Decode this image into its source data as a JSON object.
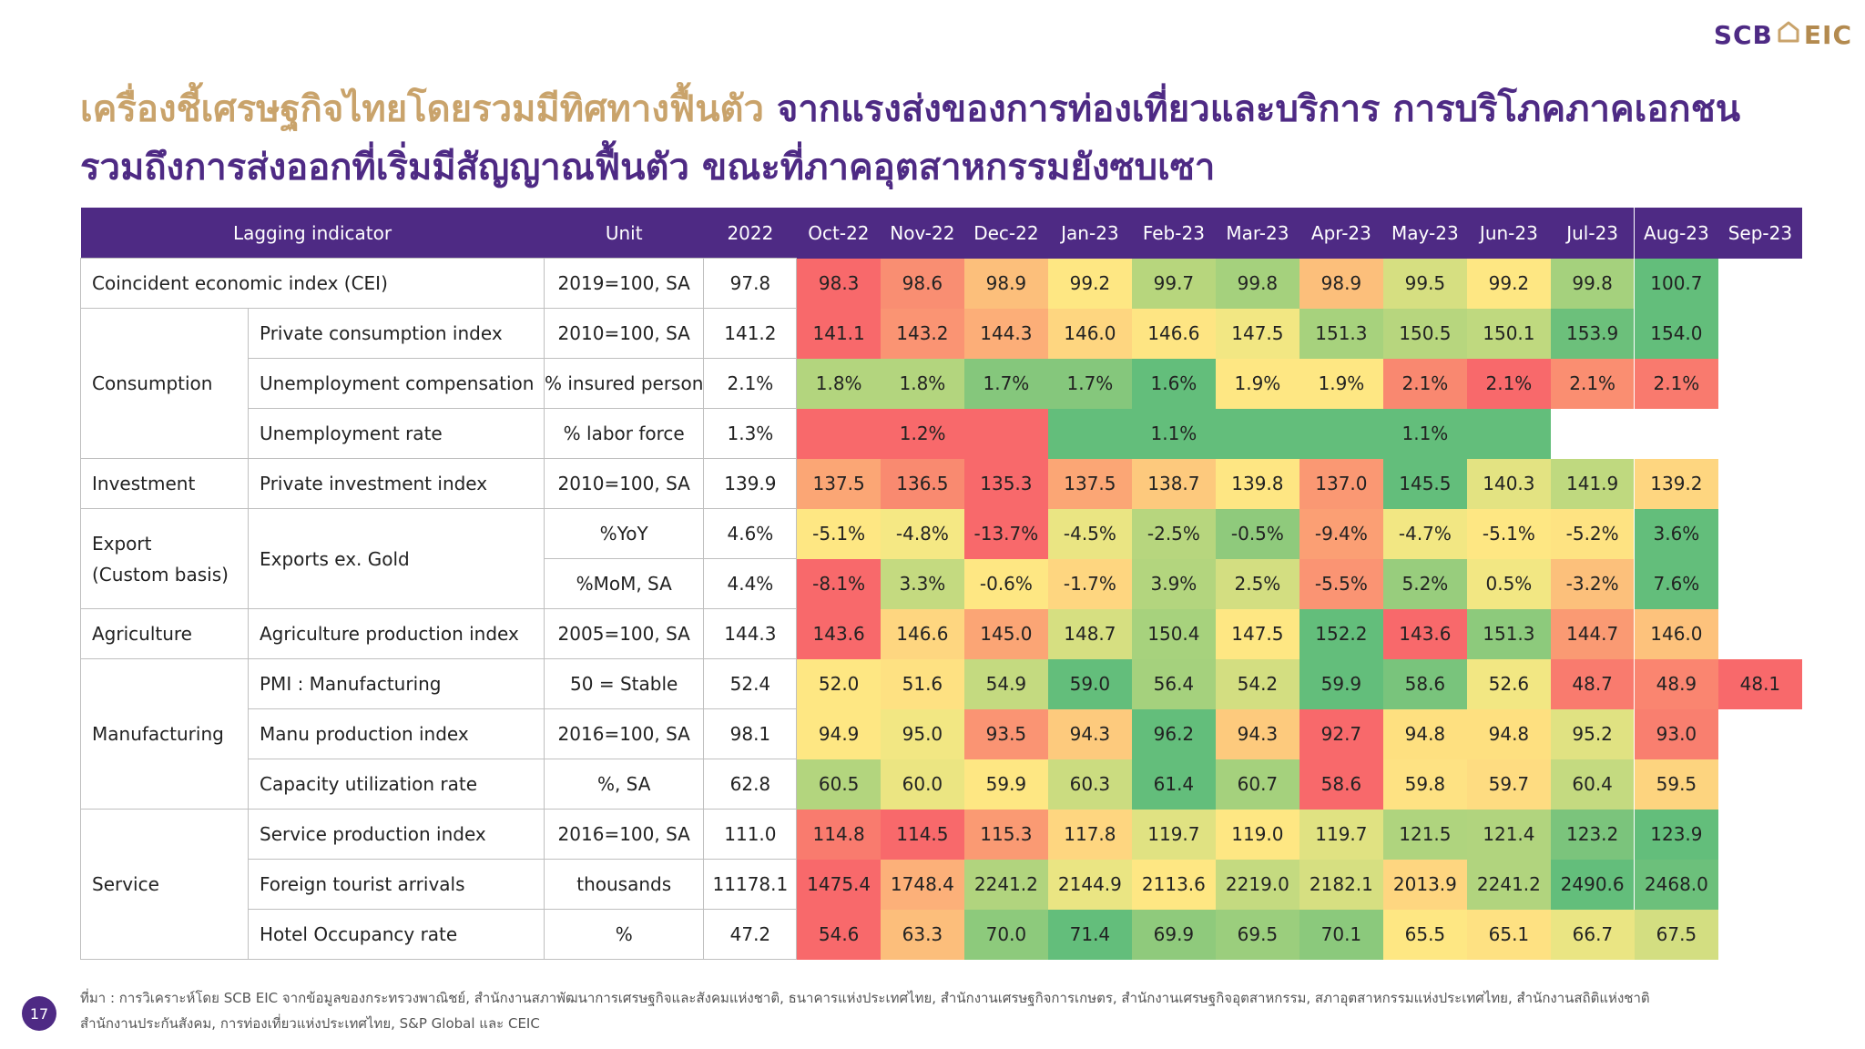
{
  "logo": {
    "left": "SCB",
    "right": "EIC"
  },
  "title": {
    "line1_gold": "เครื่องชี้เศรษฐกิจไทยโดยรวมมีทิศทางฟื้นตัว",
    "line1_rest": " จากแรงส่งของการท่องเที่ยวและบริการ การบริโภคภาคเอกชน",
    "line2": "รวมถึงการส่งออกที่เริ่มมีสัญญาณฟื้นตัว ขณะที่ภาคอุตสาหกรรมยังซบเซา"
  },
  "table": {
    "headers": {
      "indicator": "Lagging indicator",
      "unit": "Unit",
      "year": "2022",
      "months": [
        "Oct-22",
        "Nov-22",
        "Dec-22",
        "Jan-23",
        "Feb-23",
        "Mar-23",
        "Apr-23",
        "May-23",
        "Jun-23",
        "Jul-23",
        "Aug-23",
        "Sep-23"
      ]
    },
    "groups": {
      "consumption": "Consumption",
      "investment": "Investment",
      "export_line1": "Export",
      "export_line2": "(Custom basis)",
      "agriculture": "Agriculture",
      "manufacturing": "Manufacturing",
      "service": "Service"
    },
    "rows": [
      {
        "name": "Coincident economic index (CEI)",
        "unit": "2019=100, SA",
        "y2022": "97.8",
        "cells": [
          [
            "98.3",
            "#f8696b"
          ],
          [
            "98.6",
            "#f98e72"
          ],
          [
            "98.9",
            "#fcbf7b"
          ],
          [
            "99.2",
            "#fee783"
          ],
          [
            "99.7",
            "#b7d67d"
          ],
          [
            "99.8",
            "#a5d17d"
          ],
          [
            "98.9",
            "#fcbf7b"
          ],
          [
            "99.5",
            "#d6df81"
          ],
          [
            "99.2",
            "#fee783"
          ],
          [
            "99.8",
            "#a5d17d"
          ],
          [
            "100.7",
            "#63be7b"
          ]
        ]
      },
      {
        "name": "Private consumption index",
        "unit": "2010=100, SA",
        "y2022": "141.2",
        "cells": [
          [
            "141.1",
            "#f8696b"
          ],
          [
            "143.2",
            "#fa9473"
          ],
          [
            "144.3",
            "#fcae78"
          ],
          [
            "146.0",
            "#fed680"
          ],
          [
            "146.6",
            "#fee583"
          ],
          [
            "147.5",
            "#f2e783"
          ],
          [
            "151.3",
            "#a7d27d"
          ],
          [
            "150.5",
            "#b7d67e"
          ],
          [
            "150.1",
            "#bfd97f"
          ],
          [
            "153.9",
            "#6cc07b"
          ],
          [
            "154.0",
            "#63be7b"
          ]
        ]
      },
      {
        "name": "Unemployment compensation",
        "unit": "% insured person",
        "y2022": "2.1%",
        "cells": [
          [
            "1.8%",
            "#b3d57e"
          ],
          [
            "1.8%",
            "#b3d57e"
          ],
          [
            "1.7%",
            "#85c77c"
          ],
          [
            "1.7%",
            "#85c77c"
          ],
          [
            "1.6%",
            "#63be7b"
          ],
          [
            "1.9%",
            "#fee783"
          ],
          [
            "1.9%",
            "#fee783"
          ],
          [
            "2.1%",
            "#f98870"
          ],
          [
            "2.1%",
            "#f8696b"
          ],
          [
            "2.1%",
            "#fa8e71"
          ],
          [
            "2.1%",
            "#f97a6e"
          ]
        ]
      },
      {
        "name": "Unemployment rate",
        "unit": "% labor force",
        "y2022": "1.3%",
        "merged": [
          {
            "text": "1.2%",
            "span": 3,
            "color": "#f8696b"
          },
          {
            "text": "1.1%",
            "span": 3,
            "color": "#63be7b"
          },
          {
            "text": "1.1%",
            "span": 3,
            "color": "#63be7b"
          }
        ]
      },
      {
        "name": "Private investment index",
        "unit": "2010=100, SA",
        "y2022": "139.9",
        "cells": [
          [
            "137.5",
            "#fba675"
          ],
          [
            "136.5",
            "#f98a70"
          ],
          [
            "135.3",
            "#f8696b"
          ],
          [
            "137.5",
            "#fba675"
          ],
          [
            "138.7",
            "#fdc97d"
          ],
          [
            "139.8",
            "#fee683"
          ],
          [
            "137.0",
            "#fa9873"
          ],
          [
            "145.5",
            "#63be7b"
          ],
          [
            "140.3",
            "#e3e382"
          ],
          [
            "141.9",
            "#bfd97f"
          ],
          [
            "139.2",
            "#fed680"
          ]
        ]
      },
      {
        "name": "Exports ex. Gold",
        "unit": "%YoY",
        "y2022": "4.6%",
        "cells": [
          [
            "-5.1%",
            "#fee783"
          ],
          [
            "-4.8%",
            "#f5e884"
          ],
          [
            "-13.7%",
            "#f8696b"
          ],
          [
            "-4.5%",
            "#eae583"
          ],
          [
            "-2.5%",
            "#b7d67e"
          ],
          [
            "-0.5%",
            "#8fca7c"
          ],
          [
            "-9.4%",
            "#fb9f74"
          ],
          [
            "-4.7%",
            "#f2e783"
          ],
          [
            "-5.1%",
            "#fee783"
          ],
          [
            "-5.2%",
            "#fee382"
          ],
          [
            "3.6%",
            "#63be7b"
          ]
        ]
      },
      {
        "unit": "%MoM, SA",
        "y2022": "4.4%",
        "cells": [
          [
            "-8.1%",
            "#f8696b"
          ],
          [
            "3.3%",
            "#c4da80"
          ],
          [
            "-0.6%",
            "#fee783"
          ],
          [
            "-1.7%",
            "#fed680"
          ],
          [
            "3.9%",
            "#b3d57e"
          ],
          [
            "2.5%",
            "#d3de81"
          ],
          [
            "-5.5%",
            "#fa9473"
          ],
          [
            "5.2%",
            "#98cd7d"
          ],
          [
            "0.5%",
            "#f2e783"
          ],
          [
            "-3.2%",
            "#fcc07b"
          ],
          [
            "7.6%",
            "#63be7b"
          ]
        ]
      },
      {
        "name": "Agriculture production index",
        "unit": "2005=100, SA",
        "y2022": "144.3",
        "cells": [
          [
            "143.6",
            "#f8696b"
          ],
          [
            "146.6",
            "#fed680"
          ],
          [
            "145.0",
            "#fba575"
          ],
          [
            "148.7",
            "#d6df81"
          ],
          [
            "150.4",
            "#a7d27d"
          ],
          [
            "147.5",
            "#fee783"
          ],
          [
            "152.2",
            "#63be7b"
          ],
          [
            "143.6",
            "#f8696b"
          ],
          [
            "151.3",
            "#8dca7c"
          ],
          [
            "144.7",
            "#fa9a73"
          ],
          [
            "146.0",
            "#fdc27c"
          ]
        ]
      },
      {
        "name": "PMI : Manufacturing",
        "unit": "50 = Stable",
        "y2022": "52.4",
        "cells": [
          [
            "52.0",
            "#fee783"
          ],
          [
            "51.6",
            "#fee182"
          ],
          [
            "54.9",
            "#c4da80"
          ],
          [
            "59.0",
            "#63be7b"
          ],
          [
            "56.4",
            "#a5d17d"
          ],
          [
            "54.2",
            "#d3de81"
          ],
          [
            "59.9",
            "#63be7b"
          ],
          [
            "58.6",
            "#79c47c"
          ],
          [
            "52.6",
            "#f2e783"
          ],
          [
            "48.7",
            "#f97b6e"
          ],
          [
            "48.9",
            "#fa8570"
          ],
          [
            "48.1",
            "#f8696b"
          ]
        ]
      },
      {
        "name": "Manu production index",
        "unit": "2016=100, SA",
        "y2022": "98.1",
        "cells": [
          [
            "94.9",
            "#fee783"
          ],
          [
            "95.0",
            "#f2e783"
          ],
          [
            "93.5",
            "#fa9473"
          ],
          [
            "94.3",
            "#fdca7d"
          ],
          [
            "96.2",
            "#63be7b"
          ],
          [
            "94.3",
            "#fdca7d"
          ],
          [
            "92.7",
            "#f8696b"
          ],
          [
            "94.8",
            "#fee080"
          ],
          [
            "94.8",
            "#fee080"
          ],
          [
            "95.2",
            "#e0e282"
          ],
          [
            "93.0",
            "#f97f6f"
          ]
        ]
      },
      {
        "name": "Capacity utilization rate",
        "unit": "%, SA",
        "y2022": "62.8",
        "cells": [
          [
            "60.5",
            "#b3d57e"
          ],
          [
            "60.0",
            "#ebe582"
          ],
          [
            "59.9",
            "#fee783"
          ],
          [
            "60.3",
            "#cbdc80"
          ],
          [
            "61.4",
            "#63be7b"
          ],
          [
            "60.7",
            "#a5d17d"
          ],
          [
            "58.6",
            "#f8696b"
          ],
          [
            "59.8",
            "#fee283"
          ],
          [
            "59.7",
            "#fedc81"
          ],
          [
            "60.4",
            "#c4da80"
          ],
          [
            "59.5",
            "#fdd47f"
          ]
        ]
      },
      {
        "name": "Service production index",
        "unit": "2016=100, SA",
        "y2022": "111.0",
        "cells": [
          [
            "114.8",
            "#f97b6e"
          ],
          [
            "114.5",
            "#f8696b"
          ],
          [
            "115.3",
            "#fa9a73"
          ],
          [
            "117.8",
            "#fed680"
          ],
          [
            "119.7",
            "#e0e282"
          ],
          [
            "119.0",
            "#fee783"
          ],
          [
            "119.7",
            "#e0e282"
          ],
          [
            "121.5",
            "#afd47e"
          ],
          [
            "121.4",
            "#b1d47e"
          ],
          [
            "123.2",
            "#7bc47c"
          ],
          [
            "123.9",
            "#63be7b"
          ]
        ]
      },
      {
        "name": "Foreign tourist arrivals",
        "unit": "thousands",
        "y2022": "11178.1",
        "cells": [
          [
            "1475.4",
            "#f8696b"
          ],
          [
            "1748.4",
            "#fcb079"
          ],
          [
            "2241.2",
            "#b1d47e"
          ],
          [
            "2144.9",
            "#eae583"
          ],
          [
            "2113.6",
            "#fee783"
          ],
          [
            "2219.0",
            "#c4da80"
          ],
          [
            "2182.1",
            "#d6df81"
          ],
          [
            "2013.9",
            "#fed680"
          ],
          [
            "2241.2",
            "#b1d47e"
          ],
          [
            "2490.6",
            "#63be7b"
          ],
          [
            "2468.0",
            "#6cc07b"
          ]
        ]
      },
      {
        "name": "Hotel Occupancy rate",
        "unit": "%",
        "y2022": "47.2",
        "cells": [
          [
            "54.6",
            "#f8696b"
          ],
          [
            "63.3",
            "#fcbe7b"
          ],
          [
            "70.0",
            "#8dca7c"
          ],
          [
            "71.4",
            "#63be7b"
          ],
          [
            "69.9",
            "#8fca7c"
          ],
          [
            "69.5",
            "#9bce7d"
          ],
          [
            "70.1",
            "#8bc97c"
          ],
          [
            "65.5",
            "#fee783"
          ],
          [
            "65.1",
            "#fee182"
          ],
          [
            "66.7",
            "#eae583"
          ],
          [
            "67.5",
            "#d3de81"
          ]
        ]
      }
    ]
  },
  "footer": {
    "line1": "ที่มา : การวิเคราะห์โดย SCB EIC จากข้อมูลของกระทรวงพาณิชย์, สำนักงานสภาพัฒนาการเศรษฐกิจและสังคมแห่งชาติ, ธนาคารแห่งประเทศไทย, สำนักงานเศรษฐกิจการเกษตร, สำนักงานเศรษฐกิจอุตสาหกรรม, สภาอุตสาหกรรมแห่งประเทศไทย, สำนักงานสถิติแห่งชาติ",
    "line2": "สำนักงานประกันสังคม, การท่องเที่ยวแห่งประเทศไทย, S&P Global และ CEIC"
  },
  "page_number": "17"
}
